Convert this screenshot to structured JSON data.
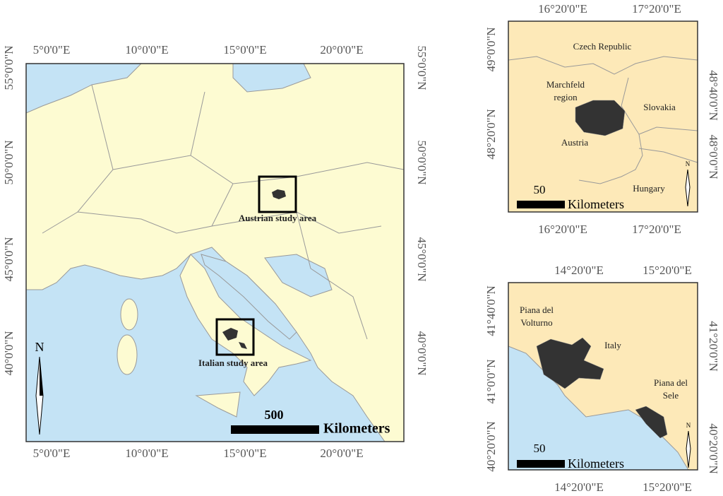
{
  "main_map": {
    "top_ticks": [
      "5°0'0\"E",
      "10°0'0\"E",
      "15°0'0\"E",
      "20°0'0\"E"
    ],
    "bottom_ticks": [
      "5°0'0\"E",
      "10°0'0\"E",
      "15°0'0\"E",
      "20°0'0\"E"
    ],
    "left_ticks": [
      "55°0'0\"N",
      "50°0'0\"N",
      "45°0'0\"N",
      "40°0'0\"N"
    ],
    "right_ticks": [
      "55°0'0\"N",
      "50°0'0\"N",
      "45°0'0\"N",
      "40°0'0\"N"
    ],
    "austrian_label": "Austrian study area",
    "italian_label": "Italian study area",
    "north": "N",
    "scale_value": "500",
    "scale_unit": "Kilometers"
  },
  "inset_austria": {
    "top_ticks": [
      "16°20'0\"E",
      "17°20'0\"E"
    ],
    "bottom_ticks": [
      "16°20'0\"E",
      "17°20'0\"E"
    ],
    "left_ticks": [
      "49°0'0\"N",
      "48°20'0\"N"
    ],
    "right_ticks": [
      "48°40'0\"N",
      "48°0'0\"N"
    ],
    "labels": {
      "czech": "Czech Republic",
      "region": [
        "Marchfeld",
        "region"
      ],
      "slovakia": "Slovakia",
      "austria": "Austria",
      "hungary": "Hungary"
    },
    "north": "N",
    "scale_value": "50",
    "scale_unit": "Kilometers"
  },
  "inset_italy": {
    "top_ticks": [
      "14°20'0\"E",
      "15°20'0\"E"
    ],
    "bottom_ticks": [
      "14°20'0\"E",
      "15°20'0\"E"
    ],
    "left_ticks": [
      "41°40'0\"N",
      "41°0'0\"N",
      "40°20'0\"N"
    ],
    "right_ticks": [
      "41°20'0\"N",
      "40°20'0\"N"
    ],
    "labels": {
      "volturno": [
        "Piana del",
        "Volturno"
      ],
      "italy": "Italy",
      "sele": [
        "Piana del",
        "Sele"
      ]
    },
    "north": "N",
    "scale_value": "50",
    "scale_unit": "Kilometers"
  }
}
